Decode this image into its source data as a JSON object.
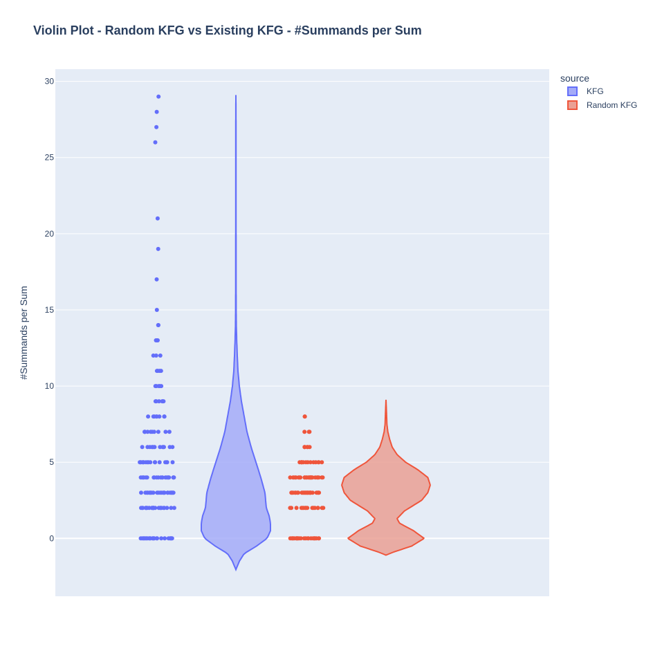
{
  "chart_data": {
    "type": "violin",
    "title": "Violin Plot - Random KFG vs Existing KFG - #Summands per Sum",
    "xlabel": "",
    "ylabel": "#Summands per Sum",
    "ylim": [
      -3.8,
      30.8
    ],
    "yticks": [
      0,
      5,
      10,
      15,
      20,
      25,
      30
    ],
    "grid": true,
    "points": "all",
    "legend": {
      "title": "source",
      "placement": "top-right",
      "entries": [
        "KFG",
        "Random KFG"
      ]
    },
    "series": [
      {
        "name": "KFG",
        "color": "#636efa",
        "fill": "#a4abf8",
        "values": [
          0,
          2,
          3,
          4,
          5,
          6,
          7,
          8,
          9,
          10,
          11,
          12,
          13,
          14,
          15,
          17,
          19,
          21,
          26,
          27,
          28,
          29
        ],
        "density_profile": [
          [
            -2.05,
            0.0
          ],
          [
            -1.5,
            0.05
          ],
          [
            -1.0,
            0.12
          ],
          [
            -0.5,
            0.3
          ],
          [
            0.0,
            0.45
          ],
          [
            0.5,
            0.5
          ],
          [
            1.0,
            0.5
          ],
          [
            1.5,
            0.48
          ],
          [
            2.0,
            0.44
          ],
          [
            3.0,
            0.42
          ],
          [
            4.0,
            0.36
          ],
          [
            5.0,
            0.29
          ],
          [
            6.0,
            0.22
          ],
          [
            7.0,
            0.16
          ],
          [
            8.0,
            0.12
          ],
          [
            9.0,
            0.08
          ],
          [
            10.0,
            0.05
          ],
          [
            11.0,
            0.03
          ],
          [
            12.0,
            0.02
          ],
          [
            13.0,
            0.012
          ],
          [
            14.0,
            0.006
          ],
          [
            15.0,
            0.004
          ],
          [
            17.0,
            0.003
          ],
          [
            19.0,
            0.003
          ],
          [
            21.0,
            0.002
          ],
          [
            24.0,
            0.002
          ],
          [
            27.0,
            0.002
          ],
          [
            29.1,
            0.0
          ]
        ]
      },
      {
        "name": "Random KFG",
        "color": "#ef553b",
        "fill": "#eaa094",
        "values": [
          0,
          2,
          3,
          4,
          5,
          6,
          7,
          8
        ],
        "density_profile": [
          [
            -1.1,
            0.0
          ],
          [
            -0.9,
            0.12
          ],
          [
            -0.5,
            0.42
          ],
          [
            0.0,
            0.62
          ],
          [
            0.5,
            0.45
          ],
          [
            1.0,
            0.22
          ],
          [
            1.3,
            0.18
          ],
          [
            1.8,
            0.3
          ],
          [
            2.5,
            0.58
          ],
          [
            3.0,
            0.68
          ],
          [
            3.5,
            0.72
          ],
          [
            4.0,
            0.68
          ],
          [
            4.5,
            0.52
          ],
          [
            5.0,
            0.32
          ],
          [
            5.5,
            0.18
          ],
          [
            6.0,
            0.1
          ],
          [
            6.5,
            0.06
          ],
          [
            7.0,
            0.03
          ],
          [
            7.5,
            0.015
          ],
          [
            8.5,
            0.006
          ],
          [
            9.1,
            0.0
          ]
        ]
      }
    ]
  }
}
